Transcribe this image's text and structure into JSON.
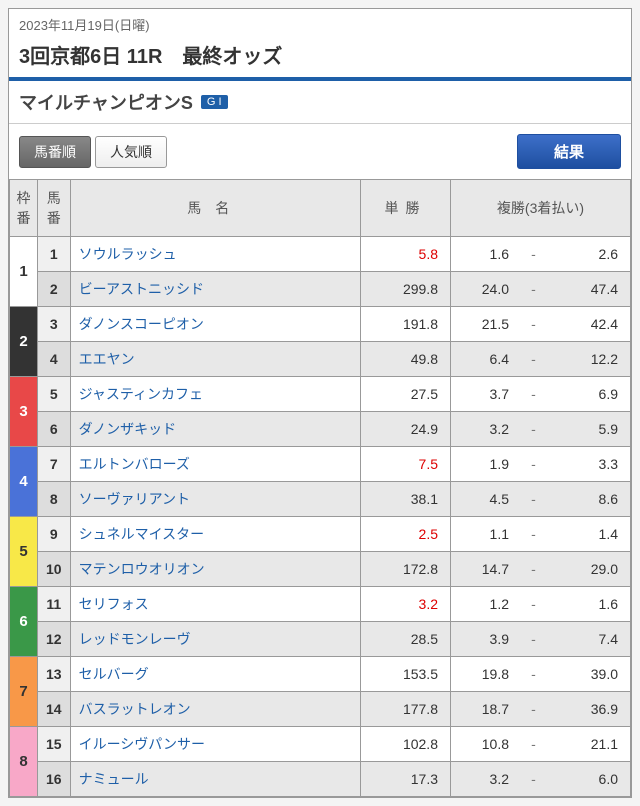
{
  "header": {
    "date_text": "2023年11月19日(日曜)",
    "title": "3回京都6日 11R　最終オッズ",
    "race_name": "マイルチャンピオンS",
    "grade": "G I"
  },
  "controls": {
    "tabs": [
      {
        "label": "馬番順",
        "active": true
      },
      {
        "label": "人気順",
        "active": false
      }
    ],
    "result_label": "結果"
  },
  "table": {
    "headers": {
      "waku": "枠番",
      "uma": "馬番",
      "name": "馬名",
      "win": "単勝",
      "place": "複勝(3着払い)"
    },
    "waku_colors": {
      "1": {
        "bg": "#ffffff",
        "fg": "#333333"
      },
      "2": {
        "bg": "#333333",
        "fg": "#ffffff"
      },
      "3": {
        "bg": "#e84848",
        "fg": "#ffffff"
      },
      "4": {
        "bg": "#4a72d8",
        "fg": "#ffffff"
      },
      "5": {
        "bg": "#f8e848",
        "fg": "#333333"
      },
      "6": {
        "bg": "#3a9848",
        "fg": "#ffffff"
      },
      "7": {
        "bg": "#f89848",
        "fg": "#333333"
      },
      "8": {
        "bg": "#f8a8c8",
        "fg": "#333333"
      }
    },
    "rows": [
      {
        "waku": 1,
        "num": 1,
        "name": "ソウルラッシュ",
        "win": "5.8",
        "fav": true,
        "p_low": "1.6",
        "p_high": "2.6"
      },
      {
        "waku": 1,
        "num": 2,
        "name": "ビーアストニッシド",
        "win": "299.8",
        "fav": false,
        "p_low": "24.0",
        "p_high": "47.4",
        "alt": true
      },
      {
        "waku": 2,
        "num": 3,
        "name": "ダノンスコーピオン",
        "win": "191.8",
        "fav": false,
        "p_low": "21.5",
        "p_high": "42.4"
      },
      {
        "waku": 2,
        "num": 4,
        "name": "エエヤン",
        "win": "49.8",
        "fav": false,
        "p_low": "6.4",
        "p_high": "12.2",
        "alt": true
      },
      {
        "waku": 3,
        "num": 5,
        "name": "ジャスティンカフェ",
        "win": "27.5",
        "fav": false,
        "p_low": "3.7",
        "p_high": "6.9"
      },
      {
        "waku": 3,
        "num": 6,
        "name": "ダノンザキッド",
        "win": "24.9",
        "fav": false,
        "p_low": "3.2",
        "p_high": "5.9",
        "alt": true
      },
      {
        "waku": 4,
        "num": 7,
        "name": "エルトンバローズ",
        "win": "7.5",
        "fav": true,
        "p_low": "1.9",
        "p_high": "3.3"
      },
      {
        "waku": 4,
        "num": 8,
        "name": "ソーヴァリアント",
        "win": "38.1",
        "fav": false,
        "p_low": "4.5",
        "p_high": "8.6",
        "alt": true
      },
      {
        "waku": 5,
        "num": 9,
        "name": "シュネルマイスター",
        "win": "2.5",
        "fav": true,
        "p_low": "1.1",
        "p_high": "1.4"
      },
      {
        "waku": 5,
        "num": 10,
        "name": "マテンロウオリオン",
        "win": "172.8",
        "fav": false,
        "p_low": "14.7",
        "p_high": "29.0",
        "alt": true
      },
      {
        "waku": 6,
        "num": 11,
        "name": "セリフォス",
        "win": "3.2",
        "fav": true,
        "p_low": "1.2",
        "p_high": "1.6"
      },
      {
        "waku": 6,
        "num": 12,
        "name": "レッドモンレーヴ",
        "win": "28.5",
        "fav": false,
        "p_low": "3.9",
        "p_high": "7.4",
        "alt": true
      },
      {
        "waku": 7,
        "num": 13,
        "name": "セルバーグ",
        "win": "153.5",
        "fav": false,
        "p_low": "19.8",
        "p_high": "39.0"
      },
      {
        "waku": 7,
        "num": 14,
        "name": "バスラットレオン",
        "win": "177.8",
        "fav": false,
        "p_low": "18.7",
        "p_high": "36.9",
        "alt": true
      },
      {
        "waku": 8,
        "num": 15,
        "name": "イルーシヴパンサー",
        "win": "102.8",
        "fav": false,
        "p_low": "10.8",
        "p_high": "21.1"
      },
      {
        "waku": 8,
        "num": 16,
        "name": "ナミュール",
        "win": "17.3",
        "fav": false,
        "p_low": "3.2",
        "p_high": "6.0",
        "alt": true
      }
    ]
  }
}
